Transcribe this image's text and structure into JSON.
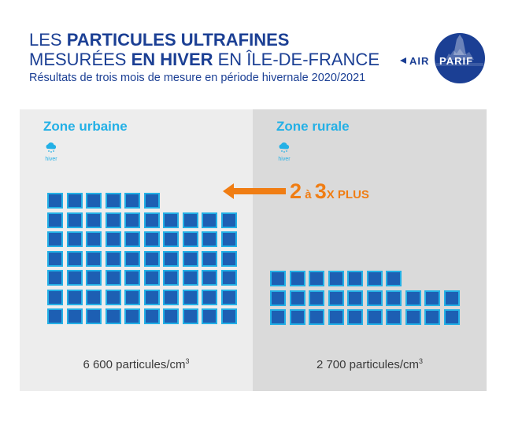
{
  "header": {
    "line1_pre": "LES ",
    "line1_bold": "PARTICULES ULTRAFINES",
    "line2_pre": "MESURÉES ",
    "line2_bold": "EN HIVER",
    "line2_post": " EN ÎLE-DE-FRANCE",
    "subtitle": "Résultats de trois mois de mesure en période hivernale 2020/2021"
  },
  "logo": {
    "left_text": "AIR",
    "right_text": "PARIF"
  },
  "zones": [
    {
      "title": "Zone urbaine",
      "season_label": "hiver",
      "value_text": "6 600 particules/cm",
      "unit_sup": "3"
    },
    {
      "title": "Zone rurale",
      "season_label": "hiver",
      "value_text": "2 700 particules/cm",
      "unit_sup": "3"
    }
  ],
  "comparison": {
    "part1": "2",
    "part2": " à ",
    "part3": "3",
    "part4": "X PLUS"
  },
  "colors": {
    "title": "#1b3f94",
    "accent_blue": "#23b0e6",
    "cell_fill": "#1d5fb3",
    "orange": "#f07d13"
  },
  "icons": [
    "cloud-snow-icon",
    "arrow-left-icon"
  ]
}
